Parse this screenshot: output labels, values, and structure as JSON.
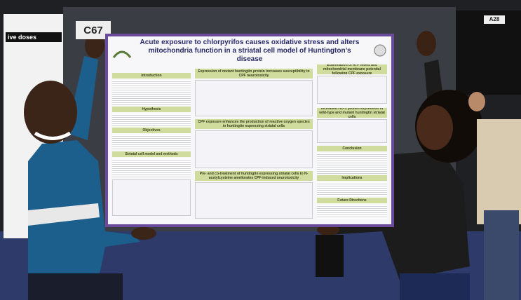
{
  "scene": {
    "booth_sign": "C67",
    "left_poster_text": "ive doses",
    "right_sign": "A28",
    "poster": {
      "title": "Acute exposure to chlorpyrifos causes oxidative stress and alters mitochondria function in a striatal cell model of Huntington’s disease",
      "sections": [
        "Introduction",
        "Hypothesis",
        "Objectives",
        "Striatal cell model and methods",
        "Expression of mutant huntingtin protein increases susceptibility to CPF neurotoxicity",
        "CPF exposure enhances the production of reactive oxygen species in huntingtin expressing striatal cells",
        "Pre- and co-treatment of huntingtin expressing striatal cells to N-acetylcysteine ameliorates CPF-induced neurotoxicity",
        "Examination of ATP levels and mitochondrial membrane potential following CPF exposure",
        "Increased HO-1 protein expression in wild-type and mutant huntingtin striatal cells",
        "Conclusion",
        "Implications",
        "Future Directions"
      ]
    }
  }
}
